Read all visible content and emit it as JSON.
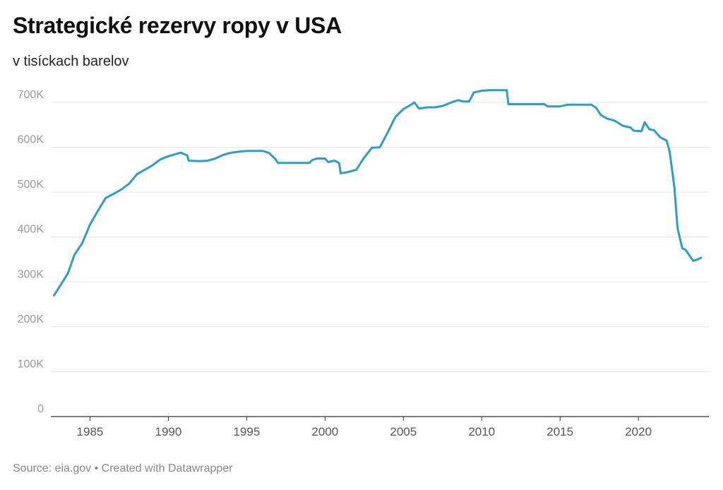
{
  "header": {
    "title": "Strategické rezervy ropy v USA",
    "subtitle": "v tisíckach barelov"
  },
  "footer": {
    "source": "Source: eia.gov • Created with Datawrapper"
  },
  "colors": {
    "line": "#2a9fcc",
    "grid": "#e3e3e3",
    "baseline": "#333333"
  },
  "chart_data": {
    "type": "line",
    "title": "Strategické rezervy ropy v USA",
    "subtitle": "v tisíckach barelov",
    "xlabel": "",
    "ylabel": "",
    "xlim": [
      1982.5,
      2024.5
    ],
    "ylim": [
      0,
      700000
    ],
    "grid": true,
    "y_ticks": [
      0,
      100000,
      200000,
      300000,
      400000,
      500000,
      600000,
      700000
    ],
    "y_tick_labels": [
      "0",
      "100K",
      "200K",
      "300K",
      "400K",
      "500K",
      "600K",
      "700K"
    ],
    "x_ticks": [
      1985,
      1990,
      1995,
      2000,
      2005,
      2010,
      2015,
      2020
    ],
    "x_tick_labels": [
      "1985",
      "1990",
      "1995",
      "2000",
      "2005",
      "2010",
      "2015",
      "2020"
    ],
    "series": [
      {
        "x": [
          1982.7,
          1983.2,
          1983.6,
          1984.0,
          1984.5,
          1985.0,
          1985.5,
          1986.0,
          1986.5,
          1987.0,
          1987.5,
          1988.0,
          1988.5,
          1989.0,
          1989.5,
          1990.0,
          1990.5,
          1990.8,
          1991.2,
          1991.3,
          1992.0,
          1992.5,
          1993.0,
          1993.5,
          1994.0,
          1994.5,
          1995.0,
          1995.5,
          1996.0,
          1996.4,
          1996.8,
          1997.0,
          1998.0,
          1999.0,
          1999.2,
          1999.5,
          2000.0,
          2000.2,
          2000.6,
          2000.9,
          2001.0,
          2001.2,
          2001.5,
          2002.0,
          2002.5,
          2003.0,
          2003.5,
          2004.0,
          2004.5,
          2005.0,
          2005.5,
          2005.7,
          2006.0,
          2006.5,
          2007.0,
          2007.5,
          2008.0,
          2008.5,
          2008.8,
          2009.2,
          2009.5,
          2010.0,
          2010.5,
          2011.0,
          2011.6,
          2011.7,
          2012.0,
          2013.0,
          2014.0,
          2014.2,
          2015.0,
          2015.5,
          2016.0,
          2016.5,
          2017.0,
          2017.3,
          2017.6,
          2018.0,
          2018.5,
          2019.0,
          2019.5,
          2019.7,
          2020.2,
          2020.4,
          2020.7,
          2021.0,
          2021.4,
          2021.8,
          2022.0,
          2022.3,
          2022.5,
          2022.8,
          2023.0,
          2023.2,
          2023.5,
          2023.8,
          2024.0
        ],
        "values": [
          270000,
          297000,
          320000,
          360000,
          386000,
          428000,
          458000,
          487000,
          496000,
          506000,
          519000,
          540000,
          550000,
          560000,
          573000,
          580000,
          585000,
          588000,
          582000,
          570000,
          569000,
          570000,
          575000,
          583000,
          588000,
          590000,
          592000,
          592000,
          592000,
          588000,
          575000,
          565000,
          565000,
          565000,
          572000,
          575000,
          575000,
          567000,
          570000,
          565000,
          542000,
          543000,
          545000,
          550000,
          577000,
          599000,
          600000,
          633000,
          668000,
          685000,
          695000,
          700000,
          686000,
          689000,
          689000,
          692000,
          699000,
          705000,
          702000,
          702000,
          722000,
          726000,
          727000,
          727000,
          727000,
          696000,
          696000,
          696000,
          696000,
          691000,
          691000,
          695000,
          695000,
          695000,
          695000,
          688000,
          672000,
          664000,
          659000,
          648000,
          644000,
          637000,
          636000,
          656000,
          640000,
          638000,
          622000,
          615000,
          590000,
          510000,
          420000,
          375000,
          372000,
          362000,
          347000,
          350000,
          354000
        ]
      }
    ]
  }
}
